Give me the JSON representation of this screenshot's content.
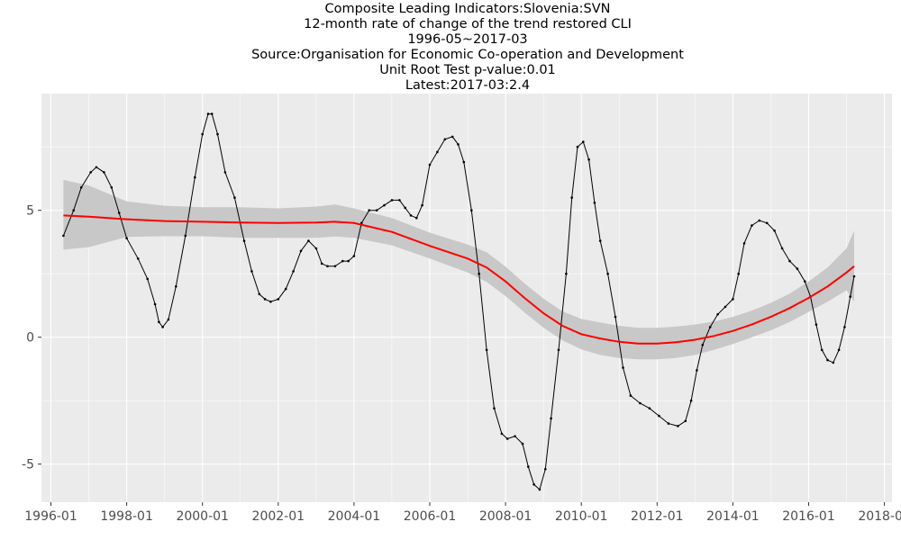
{
  "titles": {
    "line1": "Composite Leading Indicators:Slovenia:SVN",
    "line2": "12-month rate of change of the trend restored CLI",
    "line3": "1996-05~2017-03",
    "line4": "Source:Organisation for Economic Co-operation and Development",
    "line5": "Unit Root Test p-value:0.01",
    "line6": "Latest:2017-03:2.4"
  },
  "colors": {
    "panel_bg": "#ebebeb",
    "grid_major": "#ffffff",
    "series": "#000000",
    "smooth": "#ff0000",
    "band": "#c8c8c8"
  },
  "chart_data": {
    "type": "line",
    "xlabel": "",
    "ylabel": "",
    "xlim": [
      1995.75,
      2018.2
    ],
    "ylim": [
      -6.5,
      9.6
    ],
    "grid": true,
    "x_ticks": [
      {
        "value": 1996.0,
        "label": "1996-01"
      },
      {
        "value": 1998.0,
        "label": "1998-01"
      },
      {
        "value": 2000.0,
        "label": "2000-01"
      },
      {
        "value": 2002.0,
        "label": "2002-01"
      },
      {
        "value": 2004.0,
        "label": "2004-01"
      },
      {
        "value": 2006.0,
        "label": "2006-01"
      },
      {
        "value": 2008.0,
        "label": "2008-01"
      },
      {
        "value": 2010.0,
        "label": "2010-01"
      },
      {
        "value": 2012.0,
        "label": "2012-01"
      },
      {
        "value": 2014.0,
        "label": "2014-01"
      },
      {
        "value": 2016.0,
        "label": "2016-01"
      },
      {
        "value": 2018.0,
        "label": "2018-01"
      }
    ],
    "y_ticks": [
      {
        "value": -5,
        "label": "-5"
      },
      {
        "value": 0,
        "label": "0"
      },
      {
        "value": 5,
        "label": "5"
      }
    ],
    "series": [
      {
        "kind": "observed",
        "x": [
          1996.33,
          1996.6,
          1996.8,
          1997.05,
          1997.2,
          1997.4,
          1997.6,
          1997.8,
          1998.0,
          1998.3,
          1998.55,
          1998.75,
          1998.85,
          1998.95,
          1999.1,
          1999.3,
          1999.55,
          1999.8,
          2000.0,
          2000.15,
          2000.25,
          2000.4,
          2000.6,
          2000.85,
          2001.1,
          2001.3,
          2001.5,
          2001.65,
          2001.8,
          2002.0,
          2002.2,
          2002.4,
          2002.6,
          2002.8,
          2003.0,
          2003.15,
          2003.3,
          2003.5,
          2003.7,
          2003.85,
          2004.0,
          2004.2,
          2004.4,
          2004.6,
          2004.8,
          2005.0,
          2005.2,
          2005.35,
          2005.5,
          2005.65,
          2005.8,
          2006.0,
          2006.2,
          2006.4,
          2006.6,
          2006.75,
          2006.9,
          2007.1,
          2007.3,
          2007.5,
          2007.7,
          2007.9,
          2008.05,
          2008.25,
          2008.45,
          2008.6,
          2008.75,
          2008.9,
          2009.05,
          2009.2,
          2009.4,
          2009.6,
          2009.75,
          2009.9,
          2010.05,
          2010.2,
          2010.35,
          2010.5,
          2010.7,
          2010.9,
          2011.1,
          2011.3,
          2011.55,
          2011.8,
          2012.05,
          2012.3,
          2012.55,
          2012.75,
          2012.9,
          2013.05,
          2013.2,
          2013.4,
          2013.6,
          2013.8,
          2014.0,
          2014.15,
          2014.3,
          2014.5,
          2014.7,
          2014.9,
          2015.1,
          2015.3,
          2015.5,
          2015.7,
          2015.9,
          2016.05,
          2016.2,
          2016.35,
          2016.5,
          2016.65,
          2016.8,
          2016.95,
          2017.1,
          2017.2
        ],
        "y": [
          4.0,
          5.0,
          5.9,
          6.5,
          6.7,
          6.5,
          5.9,
          4.9,
          3.9,
          3.1,
          2.3,
          1.3,
          0.6,
          0.4,
          0.7,
          2.0,
          4.0,
          6.3,
          8.0,
          8.8,
          8.8,
          8.0,
          6.5,
          5.5,
          3.8,
          2.6,
          1.7,
          1.5,
          1.4,
          1.5,
          1.9,
          2.6,
          3.4,
          3.8,
          3.5,
          2.9,
          2.8,
          2.8,
          3.0,
          3.0,
          3.2,
          4.5,
          5.0,
          5.0,
          5.2,
          5.4,
          5.4,
          5.1,
          4.8,
          4.7,
          5.2,
          6.8,
          7.3,
          7.8,
          7.9,
          7.6,
          6.9,
          5.0,
          2.5,
          -0.5,
          -2.8,
          -3.8,
          -4.0,
          -3.9,
          -4.2,
          -5.1,
          -5.8,
          -6.0,
          -5.2,
          -3.2,
          -0.5,
          2.5,
          5.5,
          7.5,
          7.7,
          7.0,
          5.3,
          3.8,
          2.5,
          0.8,
          -1.2,
          -2.3,
          -2.6,
          -2.8,
          -3.1,
          -3.4,
          -3.5,
          -3.3,
          -2.5,
          -1.3,
          -0.3,
          0.4,
          0.9,
          1.2,
          1.5,
          2.5,
          3.7,
          4.4,
          4.6,
          4.5,
          4.2,
          3.5,
          3.0,
          2.7,
          2.2,
          1.6,
          0.5,
          -0.5,
          -0.9,
          -1.0,
          -0.5,
          0.4,
          1.6,
          2.4
        ]
      },
      {
        "kind": "smooth",
        "x": [
          1996.33,
          1997.0,
          1998.0,
          1999.0,
          2000.0,
          2001.0,
          2002.0,
          2003.0,
          2003.5,
          2004.0,
          2005.0,
          2006.0,
          2007.0,
          2007.5,
          2008.0,
          2008.5,
          2009.0,
          2009.5,
          2010.0,
          2010.5,
          2011.0,
          2011.5,
          2012.0,
          2012.5,
          2013.0,
          2013.5,
          2014.0,
          2014.5,
          2015.0,
          2015.5,
          2016.0,
          2016.5,
          2017.0,
          2017.2
        ],
        "y": [
          4.8,
          4.75,
          4.65,
          4.58,
          4.55,
          4.52,
          4.5,
          4.52,
          4.55,
          4.5,
          4.15,
          3.6,
          3.1,
          2.75,
          2.2,
          1.55,
          0.95,
          0.45,
          0.12,
          -0.05,
          -0.18,
          -0.25,
          -0.25,
          -0.2,
          -0.1,
          0.05,
          0.25,
          0.5,
          0.8,
          1.15,
          1.55,
          2.0,
          2.55,
          2.8
        ],
        "lower": [
          3.45,
          3.55,
          3.95,
          3.98,
          3.98,
          3.92,
          3.92,
          3.92,
          3.97,
          3.92,
          3.62,
          3.1,
          2.55,
          2.18,
          1.62,
          0.98,
          0.38,
          -0.12,
          -0.48,
          -0.7,
          -0.82,
          -0.87,
          -0.87,
          -0.82,
          -0.7,
          -0.5,
          -0.27,
          0.0,
          0.27,
          0.6,
          1.0,
          1.4,
          1.85,
          1.4
        ],
        "upper": [
          6.2,
          5.98,
          5.35,
          5.18,
          5.12,
          5.12,
          5.08,
          5.15,
          5.23,
          5.08,
          4.7,
          4.12,
          3.65,
          3.35,
          2.78,
          2.12,
          1.52,
          1.02,
          0.72,
          0.58,
          0.45,
          0.37,
          0.37,
          0.42,
          0.5,
          0.62,
          0.8,
          1.05,
          1.35,
          1.72,
          2.2,
          2.75,
          3.5,
          4.2
        ]
      }
    ]
  }
}
